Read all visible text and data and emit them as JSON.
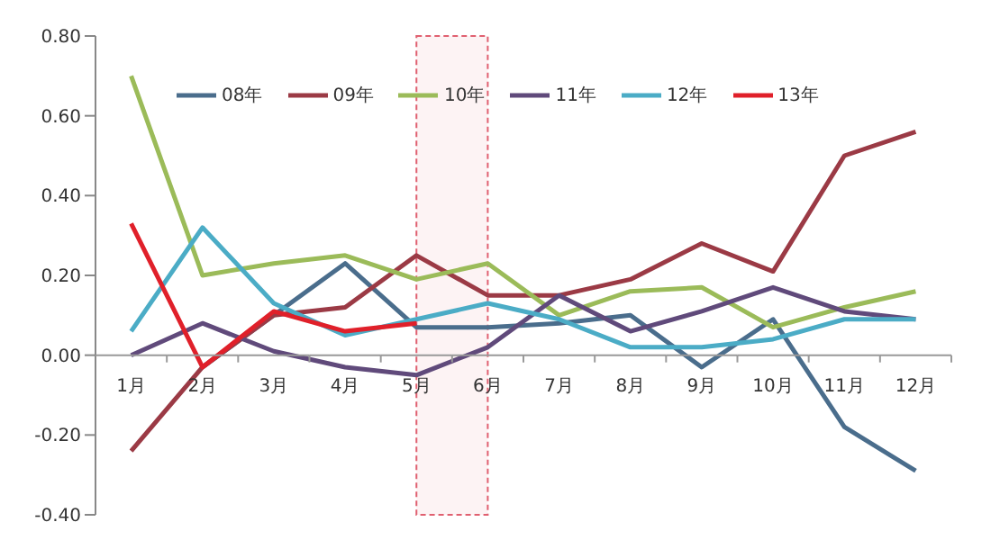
{
  "chart_data": {
    "type": "line",
    "categories": [
      "1月",
      "2月",
      "3月",
      "4月",
      "5月",
      "6月",
      "7月",
      "8月",
      "9月",
      "10月",
      "11月",
      "12月"
    ],
    "series": [
      {
        "name": "08年",
        "color": "#4a6d8c",
        "values": [
          null,
          -0.03,
          0.1,
          0.23,
          0.07,
          0.07,
          0.08,
          0.1,
          -0.03,
          0.09,
          -0.18,
          -0.29
        ]
      },
      {
        "name": "09年",
        "color": "#9b3a45",
        "values": [
          -0.24,
          -0.03,
          0.1,
          0.12,
          0.25,
          0.15,
          0.15,
          0.19,
          0.28,
          0.21,
          0.5,
          0.56
        ]
      },
      {
        "name": "10年",
        "color": "#9bbb59",
        "values": [
          0.7,
          0.2,
          0.23,
          0.25,
          0.19,
          0.23,
          0.1,
          0.16,
          0.17,
          0.07,
          0.12,
          0.16
        ]
      },
      {
        "name": "11年",
        "color": "#604a7b",
        "values": [
          0.0,
          0.08,
          0.01,
          -0.03,
          -0.05,
          0.02,
          0.15,
          0.06,
          0.11,
          0.17,
          0.11,
          0.09
        ]
      },
      {
        "name": "12年",
        "color": "#4bacc6",
        "values": [
          0.06,
          0.32,
          0.13,
          0.05,
          0.09,
          0.13,
          0.09,
          0.02,
          0.02,
          0.04,
          0.09,
          0.09
        ]
      },
      {
        "name": "13年",
        "color": "#e0202a",
        "values": [
          0.33,
          -0.03,
          0.11,
          0.06,
          0.08,
          null,
          null,
          null,
          null,
          null,
          null,
          null
        ]
      }
    ],
    "ylim": [
      -0.4,
      0.8
    ],
    "yticks": [
      {
        "value": -0.4,
        "label": "-0.40"
      },
      {
        "value": -0.2,
        "label": "-0.20"
      },
      {
        "value": 0,
        "label": "0.00"
      },
      {
        "value": 0.2,
        "label": "0.20"
      },
      {
        "value": 0.4,
        "label": "0.40"
      },
      {
        "value": 0.6,
        "label": "0.60"
      },
      {
        "value": 0.8,
        "label": "0.80"
      }
    ],
    "bands": [
      {
        "axis": "x",
        "from": "5月",
        "to": "6月",
        "color": "#e06070"
      }
    ],
    "legend": "top",
    "grid": false,
    "marker": "none",
    "line_style": "solid"
  }
}
